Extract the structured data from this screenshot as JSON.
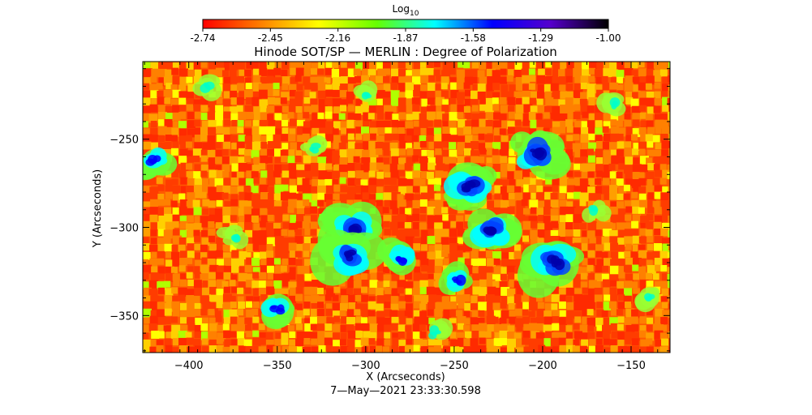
{
  "colorbar": {
    "title_base": "Log",
    "title_subscript": "10",
    "ticks": [
      "-2.74",
      "-2.45",
      "-2.16",
      "-1.87",
      "-1.58",
      "-1.29",
      "-1.00"
    ],
    "range": [
      -2.74,
      -1.0
    ],
    "colors": [
      "#ff0000",
      "#ff7f00",
      "#ffff00",
      "#66ff00",
      "#00ffff",
      "#0000ff",
      "#5500cc",
      "#000000"
    ]
  },
  "chart_data": {
    "type": "heatmap",
    "title": "Hinode SOT/SP — MERLIN : Degree of Polarization",
    "xlabel": "X (Arcseconds)",
    "ylabel": "Y (Arcseconds)",
    "xlim": [
      -426,
      -128
    ],
    "ylim": [
      -371,
      -206
    ],
    "xticks": [
      -400,
      -350,
      -300,
      -250,
      -200,
      -150
    ],
    "yticks": [
      -250,
      -300,
      -350
    ],
    "xtick_labels": [
      "−400",
      "−350",
      "−300",
      "−250",
      "−200",
      "−150"
    ],
    "ytick_labels": [
      "−250",
      "−300",
      "−350"
    ],
    "value_label": "Log10 degree of polarization",
    "value_range": [
      -2.74,
      -1.0
    ],
    "timestamp": "7—May—2021 23:33:30.598",
    "high_polarization_regions": [
      {
        "x": -306,
        "y": -301,
        "level": "high"
      },
      {
        "x": -310,
        "y": -316,
        "level": "high"
      },
      {
        "x": -241,
        "y": -277,
        "level": "high"
      },
      {
        "x": -230,
        "y": -301,
        "level": "high"
      },
      {
        "x": -193,
        "y": -320,
        "level": "high"
      },
      {
        "x": -203,
        "y": -258,
        "level": "high"
      },
      {
        "x": -350,
        "y": -346,
        "level": "medium"
      },
      {
        "x": -420,
        "y": -262,
        "level": "medium"
      },
      {
        "x": -280,
        "y": -318,
        "level": "medium"
      },
      {
        "x": -248,
        "y": -330,
        "level": "medium"
      },
      {
        "x": -170,
        "y": -290,
        "level": "low"
      },
      {
        "x": -160,
        "y": -230,
        "level": "low"
      },
      {
        "x": -390,
        "y": -220,
        "level": "low"
      },
      {
        "x": -330,
        "y": -255,
        "level": "low"
      },
      {
        "x": -260,
        "y": -360,
        "level": "low"
      },
      {
        "x": -140,
        "y": -340,
        "level": "low"
      },
      {
        "x": -375,
        "y": -305,
        "level": "low"
      },
      {
        "x": -300,
        "y": -225,
        "level": "low"
      }
    ]
  }
}
